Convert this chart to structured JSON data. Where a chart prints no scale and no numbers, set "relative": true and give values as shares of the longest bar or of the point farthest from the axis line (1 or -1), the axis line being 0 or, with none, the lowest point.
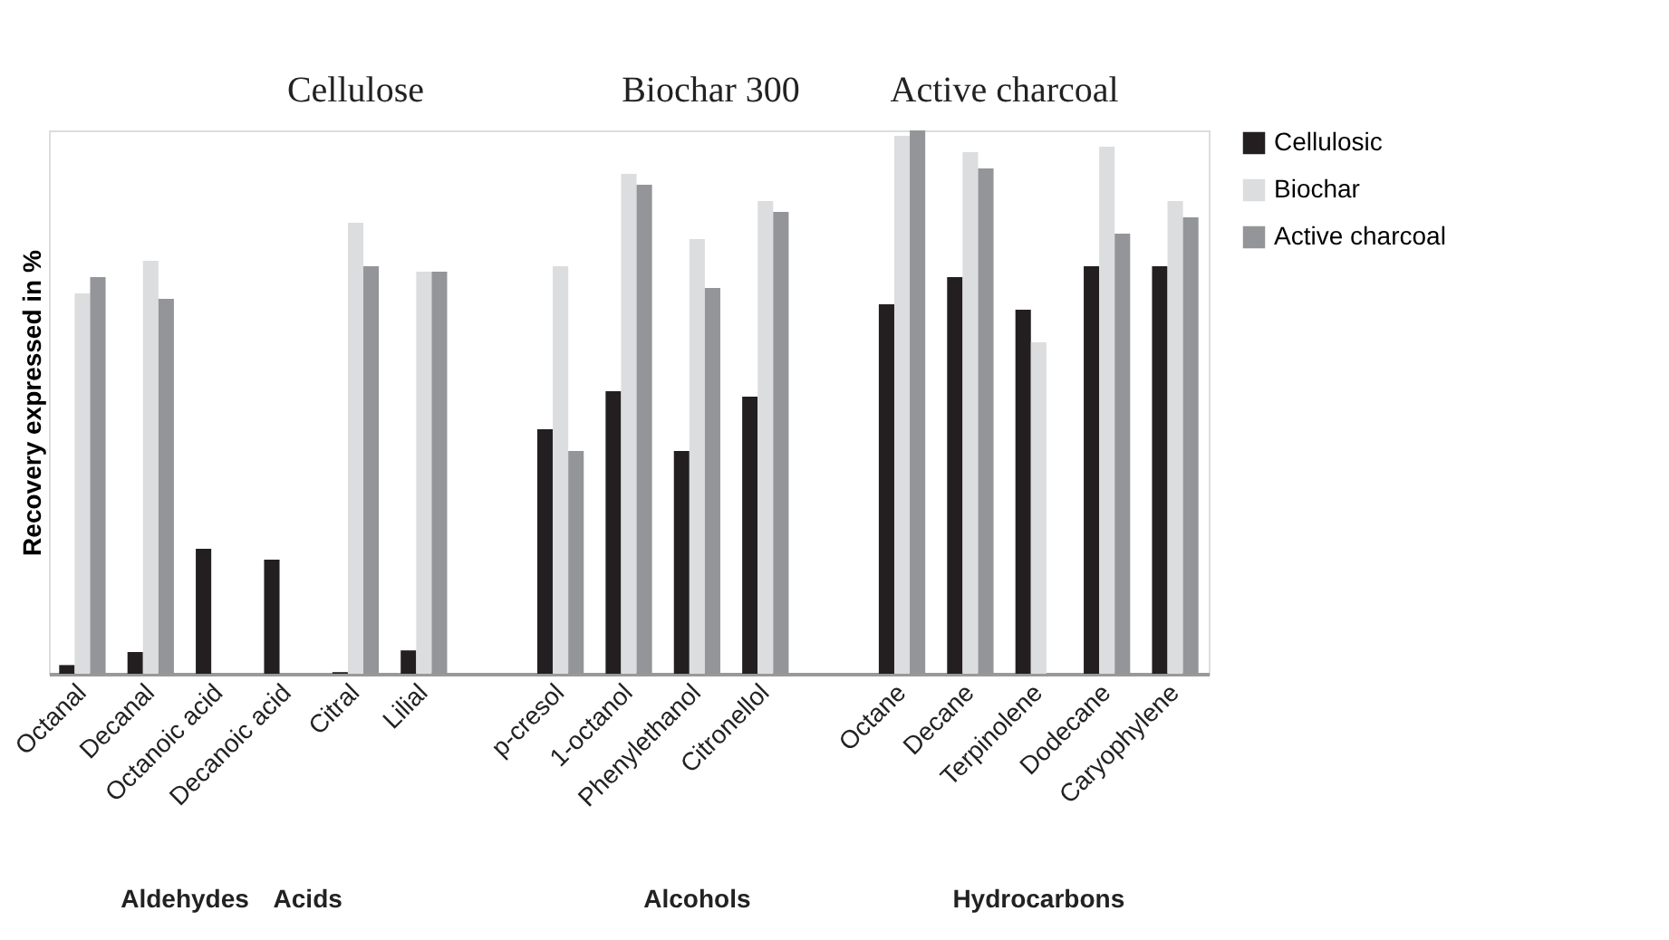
{
  "chart_data": {
    "type": "bar",
    "relative": true,
    "ylabel": "Recovery expressed in %",
    "categories": [
      "Octanal",
      "Decanal",
      "Octanoic acid",
      "Decanoic acid",
      "Citral",
      "Lilial",
      null,
      "p-cresol",
      "1-octanol",
      "Phenylethanol",
      "Citronellol",
      null,
      "Octane",
      "Decane",
      "Terpinolene",
      "Dodecane",
      "Caryophylene"
    ],
    "series": [
      {
        "name": "Cellulosic",
        "color": "#231f20",
        "values": [
          0.016,
          0.04,
          0.23,
          0.21,
          0.003,
          0.043,
          null,
          0.45,
          0.52,
          0.41,
          0.51,
          null,
          0.68,
          0.73,
          0.67,
          0.75,
          0.75
        ]
      },
      {
        "name": "Biochar",
        "color": "#dcddde",
        "values": [
          0.7,
          0.76,
          0,
          0,
          0.83,
          0.74,
          null,
          0.75,
          0.92,
          0.8,
          0.87,
          null,
          0.99,
          0.96,
          0.61,
          0.97,
          0.87
        ]
      },
      {
        "name": "Active charcoal",
        "color": "#939598",
        "values": [
          0.73,
          0.69,
          0,
          0,
          0.75,
          0.74,
          null,
          0.41,
          0.9,
          0.71,
          0.85,
          null,
          1,
          0.93,
          0,
          0.81,
          0.84
        ]
      }
    ],
    "annotations": [
      "Cellulose",
      "Biochar 300",
      "Active charcoal",
      "Aldehydes",
      "Acids",
      "Alcohols",
      "Hydrocarbons"
    ],
    "legend": "right",
    "grid": false
  }
}
